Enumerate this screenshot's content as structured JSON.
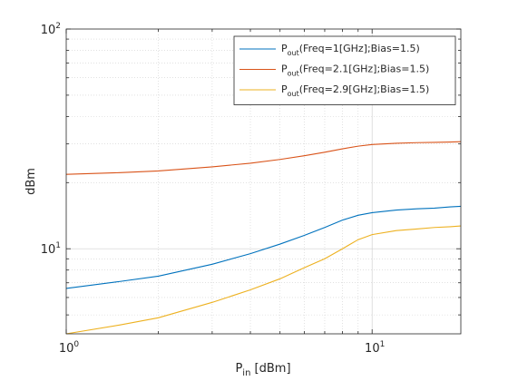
{
  "chart_data": {
    "type": "line",
    "title": "",
    "xlabel": {
      "main": "P",
      "sub": "in",
      "suffix": " [dBm]"
    },
    "ylabel": "dBm",
    "xscale": "log",
    "yscale": "log",
    "xlim": [
      1,
      19.5
    ],
    "ylim": [
      4.1,
      100
    ],
    "x_ticks": [
      {
        "base": "10",
        "exp": "0",
        "value": 1
      },
      {
        "base": "10",
        "exp": "1",
        "value": 10
      }
    ],
    "y_ticks": [
      {
        "base": "10",
        "exp": "1",
        "value": 10
      },
      {
        "base": "10",
        "exp": "2",
        "value": 100
      }
    ],
    "grid": true,
    "legend_position": "top-right",
    "series": [
      {
        "name": "Pout(Freq=1[GHz];Bias=1.5)",
        "label": {
          "main": "P",
          "sub": "out",
          "rest": "(Freq=1[GHz];Bias=1.5)"
        },
        "color": "#0072BD",
        "x": [
          1,
          1.5,
          2,
          3,
          4,
          5,
          6,
          7,
          8,
          9,
          10,
          12,
          14,
          16,
          18,
          19.5
        ],
        "y": [
          6.6,
          7.1,
          7.5,
          8.5,
          9.5,
          10.5,
          11.5,
          12.5,
          13.5,
          14.2,
          14.6,
          15.0,
          15.2,
          15.3,
          15.5,
          15.6
        ]
      },
      {
        "name": "Pout(Freq=2.1[GHz];Bias=1.5)",
        "label": {
          "main": "P",
          "sub": "out",
          "rest": "(Freq=2.1[GHz];Bias=1.5)"
        },
        "color": "#D95319",
        "x": [
          1,
          1.5,
          2,
          3,
          4,
          5,
          6,
          7,
          8,
          9,
          10,
          12,
          14,
          16,
          18,
          19.5
        ],
        "y": [
          21.8,
          22.2,
          22.6,
          23.6,
          24.5,
          25.5,
          26.5,
          27.5,
          28.5,
          29.3,
          29.8,
          30.2,
          30.4,
          30.5,
          30.6,
          30.7
        ]
      },
      {
        "name": "Pout(Freq=2.9[GHz];Bias=1.5)",
        "label": {
          "main": "P",
          "sub": "out",
          "rest": "(Freq=2.9[GHz];Bias=1.5)"
        },
        "color": "#EDB120",
        "x": [
          1,
          1.5,
          2,
          3,
          4,
          5,
          6,
          7,
          8,
          9,
          10,
          12,
          14,
          16,
          18,
          19.5
        ],
        "y": [
          4.1,
          4.5,
          4.85,
          5.7,
          6.5,
          7.3,
          8.2,
          9.0,
          10.0,
          11.0,
          11.6,
          12.1,
          12.3,
          12.5,
          12.6,
          12.7
        ]
      }
    ]
  }
}
